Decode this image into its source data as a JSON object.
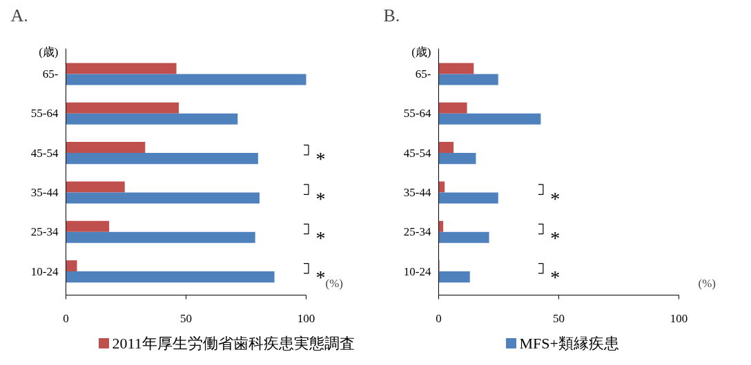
{
  "chart_data": [
    {
      "type": "bar",
      "orientation": "horizontal",
      "title": "A.",
      "ylabel": "(歳)",
      "xlabel": "(%)",
      "categories": [
        "65-",
        "55-64",
        "45-54",
        "35-44",
        "25-34",
        "10-24"
      ],
      "series": [
        {
          "name": "2011年厚生労働省歯科疾患実態調査",
          "color": "#c0504d",
          "values": [
            46,
            47,
            33,
            24.5,
            18,
            4.6
          ]
        },
        {
          "name": "MFS+類縁疾患",
          "color": "#4f81bd",
          "values": [
            100,
            71.5,
            80,
            80.6,
            78.8,
            86.8
          ]
        }
      ],
      "xlim": [
        0,
        100
      ],
      "xticks": [
        0,
        50,
        100
      ],
      "grid": false,
      "legend": "bottom",
      "annotations": [
        "*",
        "*",
        "*",
        "*"
      ]
    },
    {
      "type": "bar",
      "orientation": "horizontal",
      "title": "B.",
      "ylabel": "(歳)",
      "xlabel": "(%)",
      "categories": [
        "65-",
        "55-64",
        "45-54",
        "35-44",
        "25-34",
        "10-24"
      ],
      "series": [
        {
          "color": "#c0504d",
          "values": [
            14.6,
            11.8,
            6.2,
            2.5,
            1.9,
            0.3
          ]
        },
        {
          "color": "#4f81bd",
          "values": [
            24.8,
            42.5,
            15.5,
            24.8,
            21,
            13
          ]
        }
      ],
      "xlim": [
        0,
        100
      ],
      "xticks": [
        0,
        50,
        100
      ],
      "grid": false,
      "annotations": [
        "*",
        "*",
        "*"
      ]
    }
  ]
}
